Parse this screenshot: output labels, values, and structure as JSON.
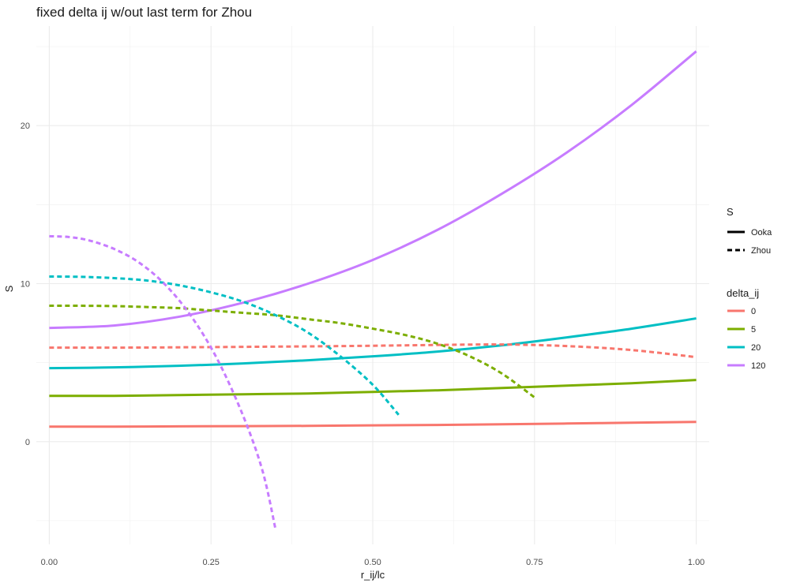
{
  "chart_data": {
    "type": "line",
    "title": "fixed delta ij w/out last term for Zhou",
    "xlabel": "r_ij/lc",
    "ylabel": "S",
    "xlim": [
      -0.02,
      1.02
    ],
    "ylim": [
      -6.5,
      26.3
    ],
    "x_ticks": [
      0.0,
      0.25,
      0.5,
      0.75,
      1.0
    ],
    "x_tick_labels": [
      "0.00",
      "0.25",
      "0.50",
      "0.75",
      "1.00"
    ],
    "y_ticks": [
      0,
      10,
      20
    ],
    "y_tick_labels": [
      "0",
      "10",
      "20"
    ],
    "grid": true,
    "legend_position": "right",
    "legend_linetype": {
      "title": "S",
      "entries": [
        {
          "label": "Ooka",
          "dash": "solid"
        },
        {
          "label": "Zhou",
          "dash": "dashed"
        }
      ]
    },
    "legend_color": {
      "title": "delta_ij",
      "entries": [
        {
          "label": "0",
          "color": "#F8766D"
        },
        {
          "label": "5",
          "color": "#7CAE00"
        },
        {
          "label": "20",
          "color": "#00BFC4"
        },
        {
          "label": "120",
          "color": "#C77CFF"
        }
      ]
    },
    "series": [
      {
        "delta": "0",
        "method": "Ooka",
        "color": "#F8766D",
        "dash": "solid",
        "x": [
          0.0,
          0.1,
          0.2,
          0.3,
          0.4,
          0.5,
          0.6,
          0.7,
          0.8,
          0.9,
          1.0
        ],
        "y": [
          0.95,
          0.95,
          0.97,
          0.98,
          1.0,
          1.03,
          1.06,
          1.1,
          1.15,
          1.2,
          1.25
        ]
      },
      {
        "delta": "5",
        "method": "Ooka",
        "color": "#7CAE00",
        "dash": "solid",
        "x": [
          0.0,
          0.1,
          0.2,
          0.3,
          0.4,
          0.5,
          0.6,
          0.7,
          0.8,
          0.9,
          1.0
        ],
        "y": [
          2.9,
          2.9,
          2.95,
          3.0,
          3.05,
          3.15,
          3.25,
          3.4,
          3.55,
          3.7,
          3.9
        ]
      },
      {
        "delta": "20",
        "method": "Ooka",
        "color": "#00BFC4",
        "dash": "solid",
        "x": [
          0.0,
          0.1,
          0.2,
          0.3,
          0.4,
          0.5,
          0.6,
          0.7,
          0.8,
          0.9,
          1.0
        ],
        "y": [
          4.65,
          4.7,
          4.8,
          4.95,
          5.15,
          5.4,
          5.7,
          6.1,
          6.6,
          7.15,
          7.8
        ]
      },
      {
        "delta": "120",
        "method": "Ooka",
        "color": "#C77CFF",
        "dash": "solid",
        "x": [
          0.0,
          0.1,
          0.2,
          0.3,
          0.4,
          0.5,
          0.6,
          0.7,
          0.8,
          0.9,
          1.0
        ],
        "y": [
          7.2,
          7.35,
          7.9,
          8.8,
          10.0,
          11.5,
          13.4,
          15.7,
          18.3,
          21.3,
          24.7
        ]
      },
      {
        "delta": "0",
        "method": "Zhou",
        "color": "#F8766D",
        "dash": "dashed",
        "x": [
          0.0,
          0.1,
          0.2,
          0.3,
          0.4,
          0.5,
          0.6,
          0.7,
          0.8,
          0.9,
          1.0
        ],
        "y": [
          5.95,
          5.95,
          5.97,
          6.0,
          6.03,
          6.07,
          6.12,
          6.15,
          6.05,
          5.8,
          5.35
        ]
      },
      {
        "delta": "5",
        "method": "Zhou",
        "color": "#7CAE00",
        "dash": "dashed",
        "x": [
          0.0,
          0.05,
          0.1,
          0.15,
          0.2,
          0.25,
          0.3,
          0.35,
          0.4,
          0.45,
          0.5,
          0.55,
          0.6,
          0.65,
          0.7,
          0.75
        ],
        "y": [
          8.6,
          8.6,
          8.58,
          8.52,
          8.45,
          8.3,
          8.15,
          8.0,
          7.75,
          7.5,
          7.15,
          6.75,
          6.2,
          5.4,
          4.3,
          2.8
        ]
      },
      {
        "delta": "20",
        "method": "Zhou",
        "color": "#00BFC4",
        "dash": "dashed",
        "x": [
          0.0,
          0.05,
          0.1,
          0.15,
          0.2,
          0.25,
          0.3,
          0.35,
          0.4,
          0.45,
          0.5,
          0.54
        ],
        "y": [
          10.45,
          10.43,
          10.35,
          10.2,
          9.9,
          9.45,
          8.85,
          8.0,
          6.9,
          5.4,
          3.6,
          1.7
        ]
      },
      {
        "delta": "120",
        "method": "Zhou",
        "color": "#C77CFF",
        "dash": "dashed",
        "x": [
          0.0,
          0.03,
          0.06,
          0.1,
          0.14,
          0.18,
          0.22,
          0.26,
          0.3,
          0.33,
          0.35
        ],
        "y": [
          13.0,
          12.95,
          12.75,
          12.2,
          11.3,
          9.9,
          7.9,
          5.2,
          1.6,
          -1.9,
          -5.6
        ]
      }
    ]
  }
}
